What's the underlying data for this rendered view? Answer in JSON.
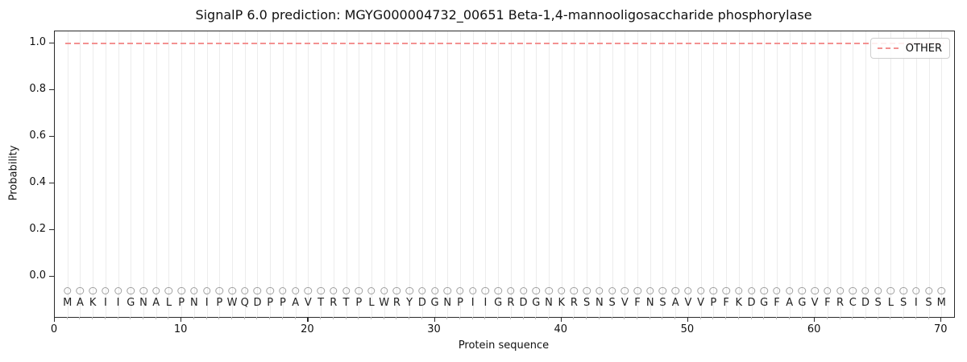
{
  "figure": {
    "title": "SignalP 6.0 prediction: MGYG000004732_00651 Beta-1,4-mannooligosaccharide phosphorylase",
    "xlabel": "Protein sequence",
    "ylabel": "Probability"
  },
  "legend": {
    "label": "OTHER"
  },
  "axes": {
    "x_tick_labels": [
      "0",
      "10",
      "20",
      "30",
      "40",
      "50",
      "60",
      "70"
    ],
    "y_tick_labels": [
      "0.0",
      "0.2",
      "0.4",
      "0.6",
      "0.8",
      "1.0"
    ]
  },
  "sequence": "MAKIIGNALPNIPWQDPPAVTRTPLWRYDGNPIIGRDGNKRSNSVFNSAVVPFKDGFAGVFRCDSLSISM",
  "colors": {
    "other_line": "#f39191",
    "gridline": "#ececec",
    "marker_edge": "#a0a0a0",
    "letter": "#222222",
    "spine": "#2a2a2a"
  },
  "chart_data": {
    "type": "line",
    "title": "SignalP 6.0 prediction: MGYG000004732_00651 Beta-1,4-mannooligosaccharide phosphorylase",
    "xlabel": "Protein sequence",
    "ylabel": "Probability",
    "xlim": [
      0,
      71
    ],
    "ylim": [
      -0.17,
      1.05
    ],
    "x_ticks": [
      0,
      10,
      20,
      30,
      40,
      50,
      60,
      70
    ],
    "y_ticks": [
      0.0,
      0.2,
      0.4,
      0.6,
      0.8,
      1.0
    ],
    "grid": "light vertical gridline at each residue position 1-70",
    "legend_position": "upper right",
    "series": [
      {
        "name": "OTHER",
        "style": "dashed",
        "color": "#f39191",
        "x": [
          1,
          2,
          3,
          4,
          5,
          6,
          7,
          8,
          9,
          10,
          11,
          12,
          13,
          14,
          15,
          16,
          17,
          18,
          19,
          20,
          21,
          22,
          23,
          24,
          25,
          26,
          27,
          28,
          29,
          30,
          31,
          32,
          33,
          34,
          35,
          36,
          37,
          38,
          39,
          40,
          41,
          42,
          43,
          44,
          45,
          46,
          47,
          48,
          49,
          50,
          51,
          52,
          53,
          54,
          55,
          56,
          57,
          58,
          59,
          60,
          61,
          62,
          63,
          64,
          65,
          66,
          67,
          68,
          69,
          70
        ],
        "y": [
          1.0,
          1.0,
          1.0,
          1.0,
          1.0,
          1.0,
          1.0,
          1.0,
          1.0,
          1.0,
          1.0,
          1.0,
          1.0,
          1.0,
          1.0,
          1.0,
          1.0,
          1.0,
          1.0,
          1.0,
          1.0,
          1.0,
          1.0,
          1.0,
          1.0,
          1.0,
          1.0,
          1.0,
          1.0,
          1.0,
          1.0,
          1.0,
          1.0,
          1.0,
          1.0,
          1.0,
          1.0,
          1.0,
          1.0,
          1.0,
          1.0,
          1.0,
          1.0,
          1.0,
          1.0,
          1.0,
          1.0,
          1.0,
          1.0,
          1.0,
          1.0,
          1.0,
          1.0,
          1.0,
          1.0,
          1.0,
          1.0,
          1.0,
          1.0,
          1.0,
          1.0,
          1.0,
          1.0,
          1.0,
          1.0,
          1.0,
          1.0,
          1.0,
          1.0,
          1.0
        ]
      }
    ],
    "residue_markers": {
      "glyph": "O",
      "y": -0.06
    },
    "residue_letters_y": -0.115,
    "sequence": "MAKIIGNALPNIPWQDPPAVTRTPLWRYDGNPIIGRDGNKRSNSVFNSAVVPFKDGFAGVFRCDSLSISM"
  }
}
